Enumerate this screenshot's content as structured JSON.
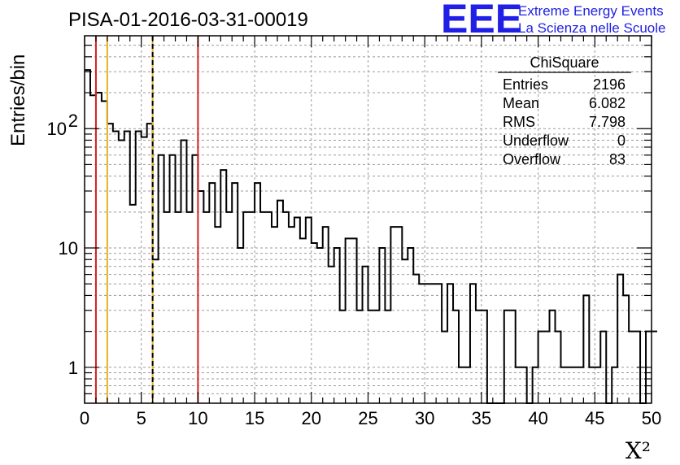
{
  "chart_data": {
    "type": "histogram",
    "title": "PISA-01-2016-03-31-00019",
    "xlabel": "X²",
    "ylabel": "Entries/bin",
    "xlim": [
      0,
      50
    ],
    "ylim": [
      0.5,
      600
    ],
    "yscale": "log",
    "grid": true,
    "bin_width": 0.5,
    "x_ticks": [
      "0",
      "5",
      "10",
      "15",
      "20",
      "25",
      "30",
      "35",
      "40",
      "45",
      "50"
    ],
    "y_ticks": [
      {
        "value": 1,
        "base": "1",
        "exp": ""
      },
      {
        "value": 10,
        "base": "10",
        "exp": ""
      },
      {
        "value": 100,
        "base": "10",
        "exp": "2"
      }
    ],
    "values": [
      310,
      190,
      200,
      170,
      110,
      95,
      80,
      95,
      23,
      95,
      85,
      110,
      8,
      60,
      20,
      60,
      20,
      80,
      20,
      60,
      30,
      20,
      35,
      15,
      45,
      20,
      35,
      10,
      20,
      20,
      35,
      20,
      20,
      15,
      25,
      20,
      15,
      18,
      12,
      18,
      11,
      10,
      15,
      7,
      10,
      3,
      12,
      12,
      3,
      7,
      3,
      3,
      10,
      3,
      15,
      15,
      8,
      10,
      6,
      5,
      5,
      5,
      5,
      2,
      5,
      3,
      1,
      1,
      5,
      3,
      3,
      0.5,
      0.5,
      0.5,
      3,
      3,
      1,
      1,
      0.5,
      1,
      2,
      2,
      3,
      2,
      1,
      1,
      1,
      1,
      4,
      1,
      1,
      2,
      0.5,
      1,
      6,
      4,
      2,
      2,
      0.5,
      2,
      2
    ],
    "vertical_lines": [
      {
        "x": 1,
        "color": "#d61f1f",
        "style": "solid"
      },
      {
        "x": 2,
        "color": "#e8b020",
        "style": "solid"
      },
      {
        "x": 6,
        "color": "#e8b020",
        "style": "solid"
      },
      {
        "x": 6,
        "color": "#000000",
        "style": "dashed"
      },
      {
        "x": 10,
        "color": "#d61f1f",
        "style": "solid"
      }
    ],
    "stats": {
      "name": "ChiSquare",
      "rows": [
        {
          "label": "Entries",
          "value": "2196"
        },
        {
          "label": "Mean",
          "value": "6.082"
        },
        {
          "label": "RMS",
          "value": "7.798"
        },
        {
          "label": "Underflow",
          "value": "0"
        },
        {
          "label": "Overflow",
          "value": "83"
        }
      ]
    }
  },
  "logo": {
    "mark": "EEE",
    "line1": "Extreme Energy Events",
    "line2": "La Scienza nelle Scuole",
    "color": "#1f1fe6"
  }
}
